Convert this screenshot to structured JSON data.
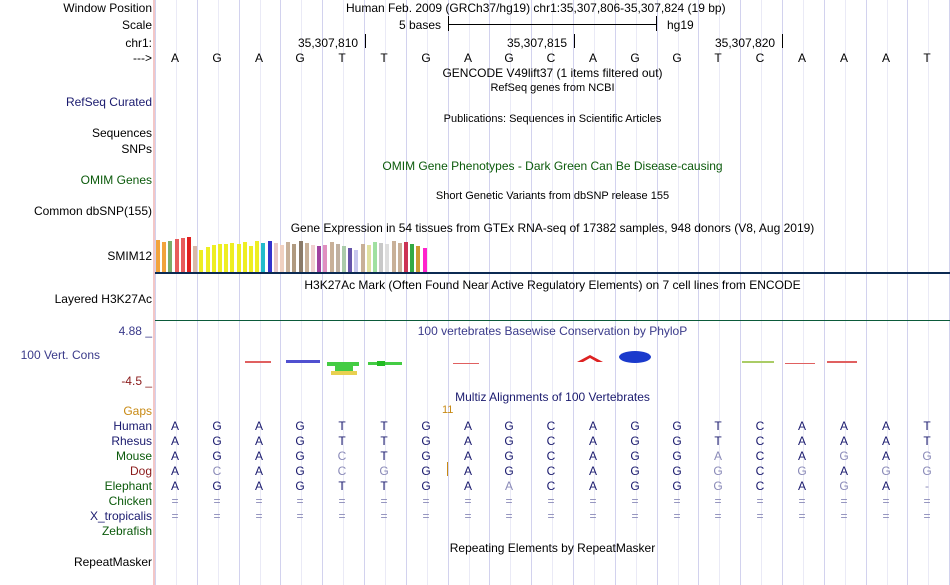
{
  "header": {
    "window_position_label": "Window Position",
    "assembly_position": "Human Feb. 2009 (GRCh37/hg19)   chr1:35,307,806-35,307,824 (19 bp)",
    "scale_label": "Scale",
    "scale_text": "5 bases",
    "scale_db": "hg19",
    "chrom_label": "chr1:",
    "ruler_ticks": [
      "35,307,810",
      "35,307,815",
      "35,307,820"
    ],
    "strand_label": "--->",
    "bases": [
      "A",
      "G",
      "A",
      "G",
      "T",
      "T",
      "G",
      "A",
      "G",
      "C",
      "A",
      "G",
      "G",
      "T",
      "C",
      "A",
      "A",
      "A",
      "T"
    ]
  },
  "tracks": {
    "gencode_title": "GENCODE V49lift37 (1 items filtered out)",
    "refseq_label": "RefSeq Curated",
    "refseq_title": "RefSeq genes from NCBI",
    "sequences_label": "Sequences",
    "snps_label": "SNPs",
    "publications_title": "Publications: Sequences in Scientific Articles",
    "omim_title": "OMIM Gene Phenotypes - Dark Green Can Be Disease-causing",
    "omim_label": "OMIM Genes",
    "dbsnp_title": "Short Genetic Variants from dbSNP release 155",
    "dbsnp_label": "Common dbSNP(155)",
    "gtex_title": "Gene Expression in 54 tissues from GTEx RNA-seq of 17382 samples, 948 donors (V8, Aug 2019)",
    "gtex_gene": "SMIM12",
    "h3k27ac_title": "H3K27Ac Mark (Often Found Near Active Regulatory Elements) on 7 cell lines from ENCODE",
    "h3k27ac_label": "Layered H3K27Ac",
    "phylop_title": "100 vertebrates Basewise Conservation by PhyloP",
    "phylop_label": "100 Vert. Cons",
    "phylop_max": "4.88 _",
    "phylop_min": "-4.5 _",
    "multiz_title": "Multiz Alignments of 100 Vertebrates",
    "gaps_label": "Gaps",
    "gaps_value": "11",
    "repeatmasker_title": "Repeating Elements by RepeatMasker",
    "repeatmasker_label": "RepeatMasker"
  },
  "gtex_bars": [
    {
      "h": 32,
      "c": "#f2a33c"
    },
    {
      "h": 30,
      "c": "#f2a33c"
    },
    {
      "h": 31,
      "c": "#7bae6a"
    },
    {
      "h": 33,
      "c": "#e85c5c"
    },
    {
      "h": 34,
      "c": "#e85c5c"
    },
    {
      "h": 35,
      "c": "#e02020"
    },
    {
      "h": 26,
      "c": "#d9b9a9"
    },
    {
      "h": 22,
      "c": "#eeee22"
    },
    {
      "h": 25,
      "c": "#eeee22"
    },
    {
      "h": 27,
      "c": "#eeee22"
    },
    {
      "h": 28,
      "c": "#eeee22"
    },
    {
      "h": 28,
      "c": "#eeee22"
    },
    {
      "h": 29,
      "c": "#eeee22"
    },
    {
      "h": 28,
      "c": "#eeee22"
    },
    {
      "h": 30,
      "c": "#eeee22"
    },
    {
      "h": 26,
      "c": "#eeee22"
    },
    {
      "h": 31,
      "c": "#eeee22"
    },
    {
      "h": 29,
      "c": "#22bbcc"
    },
    {
      "h": 31,
      "c": "#3333cc"
    },
    {
      "h": 29,
      "c": "#e8c8c8"
    },
    {
      "h": 27,
      "c": "#f0d0c0"
    },
    {
      "h": 30,
      "c": "#c8b098"
    },
    {
      "h": 28,
      "c": "#b09a80"
    },
    {
      "h": 31,
      "c": "#8a7a68"
    },
    {
      "h": 29,
      "c": "#c8b098"
    },
    {
      "h": 27,
      "c": "#f0d0d0"
    },
    {
      "h": 26,
      "c": "#a040a0"
    },
    {
      "h": 27,
      "c": "#e090c0"
    },
    {
      "h": 30,
      "c": "#c8b098"
    },
    {
      "h": 28,
      "c": "#c0b0a0"
    },
    {
      "h": 26,
      "c": "#aaccaa"
    },
    {
      "h": 24,
      "c": "#6655aa"
    },
    {
      "h": 22,
      "c": "#c8c8ee"
    },
    {
      "h": 28,
      "c": "#c8b098"
    },
    {
      "h": 27,
      "c": "#e0e0a0"
    },
    {
      "h": 30,
      "c": "#a0e0a0"
    },
    {
      "h": 29,
      "c": "#c8c8c8"
    },
    {
      "h": 28,
      "c": "#dddddd"
    },
    {
      "h": 31,
      "c": "#c8b098"
    },
    {
      "h": 29,
      "c": "#c8b098"
    },
    {
      "h": 30,
      "c": "#cc3355"
    },
    {
      "h": 28,
      "c": "#33aa44"
    },
    {
      "h": 26,
      "c": "#cc9933"
    },
    {
      "h": 24,
      "c": "#ff22cc"
    }
  ],
  "alignment": {
    "species": [
      {
        "name": "Human",
        "color": "#1a1a6e",
        "bases": [
          "A",
          "G",
          "A",
          "G",
          "T",
          "T",
          "G",
          "A",
          "G",
          "C",
          "A",
          "G",
          "G",
          "T",
          "C",
          "A",
          "A",
          "A",
          "T"
        ]
      },
      {
        "name": "Rhesus",
        "color": "#1a1a6e",
        "bases": [
          "A",
          "G",
          "A",
          "G",
          "T",
          "T",
          "G",
          "A",
          "G",
          "C",
          "A",
          "G",
          "G",
          "T",
          "C",
          "A",
          "A",
          "A",
          "T"
        ]
      },
      {
        "name": "Mouse",
        "color": "#0b5a0b",
        "bases": [
          "A",
          "G",
          "A",
          "G",
          "C",
          "T",
          "G",
          "A",
          "G",
          "C",
          "A",
          "G",
          "G",
          "A",
          "C",
          "A",
          "G",
          "A",
          "G"
        ]
      },
      {
        "name": "Dog",
        "color": "#8a1a1a",
        "bases": [
          "A",
          "C",
          "A",
          "G",
          "C",
          "G",
          "G",
          "A",
          "G",
          "C",
          "A",
          "G",
          "G",
          "G",
          "C",
          "G",
          "A",
          "G",
          "G"
        ]
      },
      {
        "name": "Elephant",
        "color": "#0b5a0b",
        "bases": [
          "A",
          "G",
          "A",
          "G",
          "T",
          "T",
          "G",
          "A",
          "A",
          "C",
          "A",
          "G",
          "G",
          "G",
          "C",
          "A",
          "G",
          "A",
          "-"
        ]
      },
      {
        "name": "Chicken",
        "color": "#0b5a0b",
        "bases": [
          "=",
          "=",
          "=",
          "=",
          "=",
          "=",
          "=",
          "=",
          "=",
          "=",
          "=",
          "=",
          "=",
          "=",
          "=",
          "=",
          "=",
          "=",
          "="
        ]
      },
      {
        "name": "X_tropicalis",
        "color": "#1a1a6e",
        "bases": [
          "=",
          "=",
          "=",
          "=",
          "=",
          "=",
          "=",
          "=",
          "=",
          "=",
          "=",
          "=",
          "=",
          "=",
          "=",
          "=",
          "=",
          "=",
          "="
        ]
      },
      {
        "name": "Zebrafish",
        "color": "#0b5a0b",
        "bases": []
      }
    ],
    "mismatch_color": "#8a8ab8"
  }
}
